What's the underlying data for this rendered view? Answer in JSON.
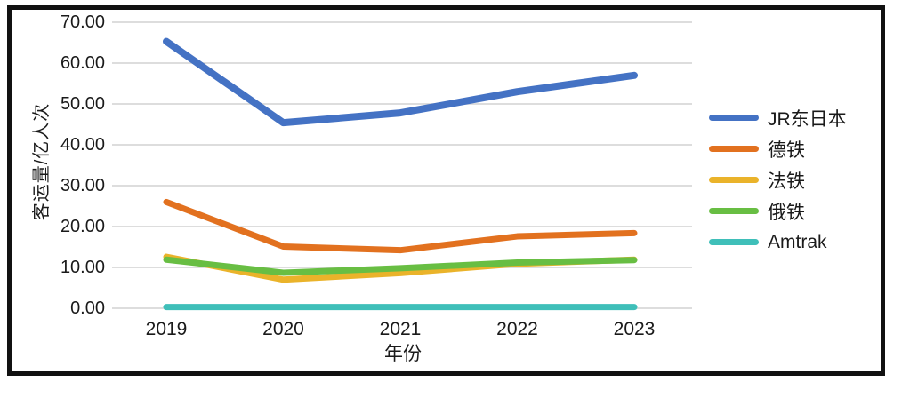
{
  "chart_data": {
    "type": "line",
    "title": "",
    "xlabel": "年份",
    "ylabel": "客运量/亿人次",
    "categories": [
      "2019",
      "2020",
      "2021",
      "2022",
      "2023"
    ],
    "series": [
      {
        "name": "JR东日本",
        "color": "#4472C4",
        "values": [
          65.3,
          45.4,
          47.8,
          53.0,
          57.0
        ]
      },
      {
        "name": "德铁",
        "color": "#E2711F",
        "values": [
          26.0,
          15.1,
          14.2,
          17.6,
          18.4
        ]
      },
      {
        "name": "法铁",
        "color": "#EAB32A",
        "values": [
          12.6,
          7.0,
          8.6,
          10.9,
          11.9
        ]
      },
      {
        "name": "俄铁",
        "color": "#68BE43",
        "values": [
          11.9,
          8.7,
          9.8,
          11.2,
          11.8
        ]
      },
      {
        "name": "Amtrak",
        "color": "#3FBFB9",
        "values": [
          0.3,
          0.3,
          0.3,
          0.3,
          0.3
        ]
      }
    ],
    "ylim": [
      0,
      70
    ],
    "ytick_step": 10,
    "ytick_labels": [
      "70.00",
      "60.00",
      "50.00",
      "40.00",
      "30.00",
      "20.00",
      "10.00",
      "0.00"
    ],
    "grid": true,
    "legend_position": "right",
    "colors": {
      "gridline": "#D2D2D2",
      "text": "#1A1A1A",
      "frame_border": "#111111",
      "background": "#FFFFFF"
    }
  }
}
